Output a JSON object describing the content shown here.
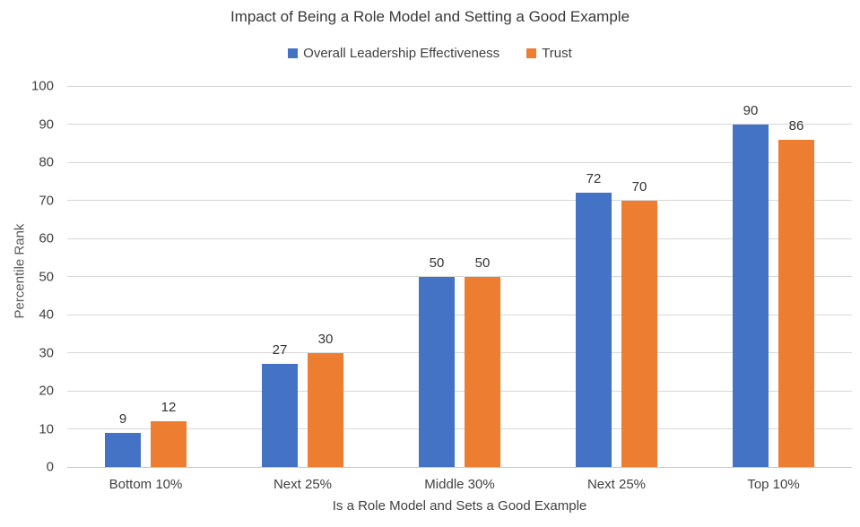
{
  "chart_data": {
    "type": "bar",
    "title": "Impact of Being a Role Model and Setting a Good Example",
    "categories": [
      "Bottom 10%",
      "Next 25%",
      "Middle 30%",
      "Next 25%",
      "Top 10%"
    ],
    "series": [
      {
        "name": "Overall Leadership Effectiveness",
        "color": "#4472C4",
        "values": [
          9,
          27,
          50,
          72,
          90
        ]
      },
      {
        "name": "Trust",
        "color": "#ED7D31",
        "values": [
          12,
          30,
          50,
          70,
          86
        ]
      }
    ],
    "xlabel": "Is a Role Model and Sets a Good Example",
    "ylabel": "Percentile Rank",
    "ylim": [
      0,
      100
    ],
    "yticks": [
      0,
      10,
      20,
      30,
      40,
      50,
      60,
      70,
      80,
      90,
      100
    ],
    "grid": true,
    "legend_position": "top",
    "data_labels": true
  },
  "colors": {
    "series_blue": "#4472C4",
    "series_orange": "#ED7D31",
    "gridline": "#D8D8D8",
    "text": "#404040",
    "background": "#FFFFFF"
  }
}
